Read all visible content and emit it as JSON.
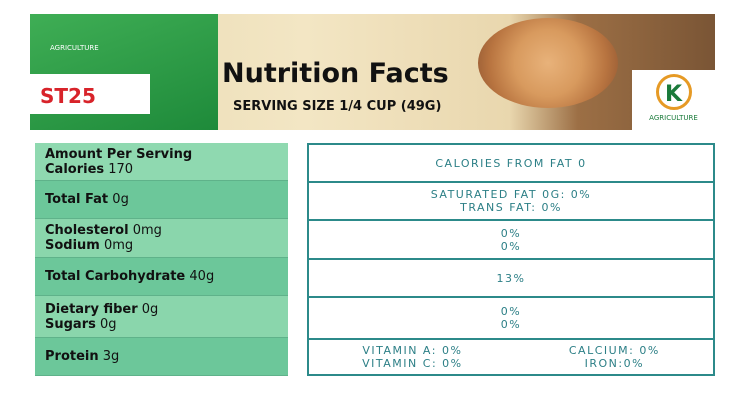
{
  "header": {
    "title": "Nutrition Facts",
    "subtitle": "SERVING SIZE 1/4 CUP (49G)",
    "bag": {
      "brand": "AGRICULTURE",
      "product": "ST25"
    },
    "logo": {
      "letter": "K",
      "name": "AGRICULTURE"
    }
  },
  "left_rows": [
    [
      {
        "label": "Amount Per Serving"
      },
      {
        "label": "Calories",
        "value": "170"
      }
    ],
    [
      {
        "label": "Total Fat",
        "value": "0g"
      }
    ],
    [
      {
        "label": "Cholesterol",
        "value": "0mg"
      },
      {
        "label": "Sodium",
        "value": "0mg"
      }
    ],
    [
      {
        "label": "Total Carbohydrate",
        "value": "40g"
      }
    ],
    [
      {
        "label": "Dietary fiber",
        "value": "0g"
      },
      {
        "label": "Sugars",
        "value": "0g"
      }
    ],
    [
      {
        "label": "Protein",
        "value": "3g"
      }
    ]
  ],
  "right_rows": [
    [
      "CALORIES FROM FAT 0"
    ],
    [
      "SATURATED FAT 0G: 0%",
      "TRANS FAT: 0%"
    ],
    [
      "0%",
      "0%"
    ],
    [
      "13%"
    ],
    [
      "0%",
      "0%"
    ]
  ],
  "right_last_row": [
    [
      "VITAMIN A: 0%",
      "VITAMIN C: 0%"
    ],
    [
      "CALCIUM: 0%",
      "IRON:0%"
    ]
  ]
}
